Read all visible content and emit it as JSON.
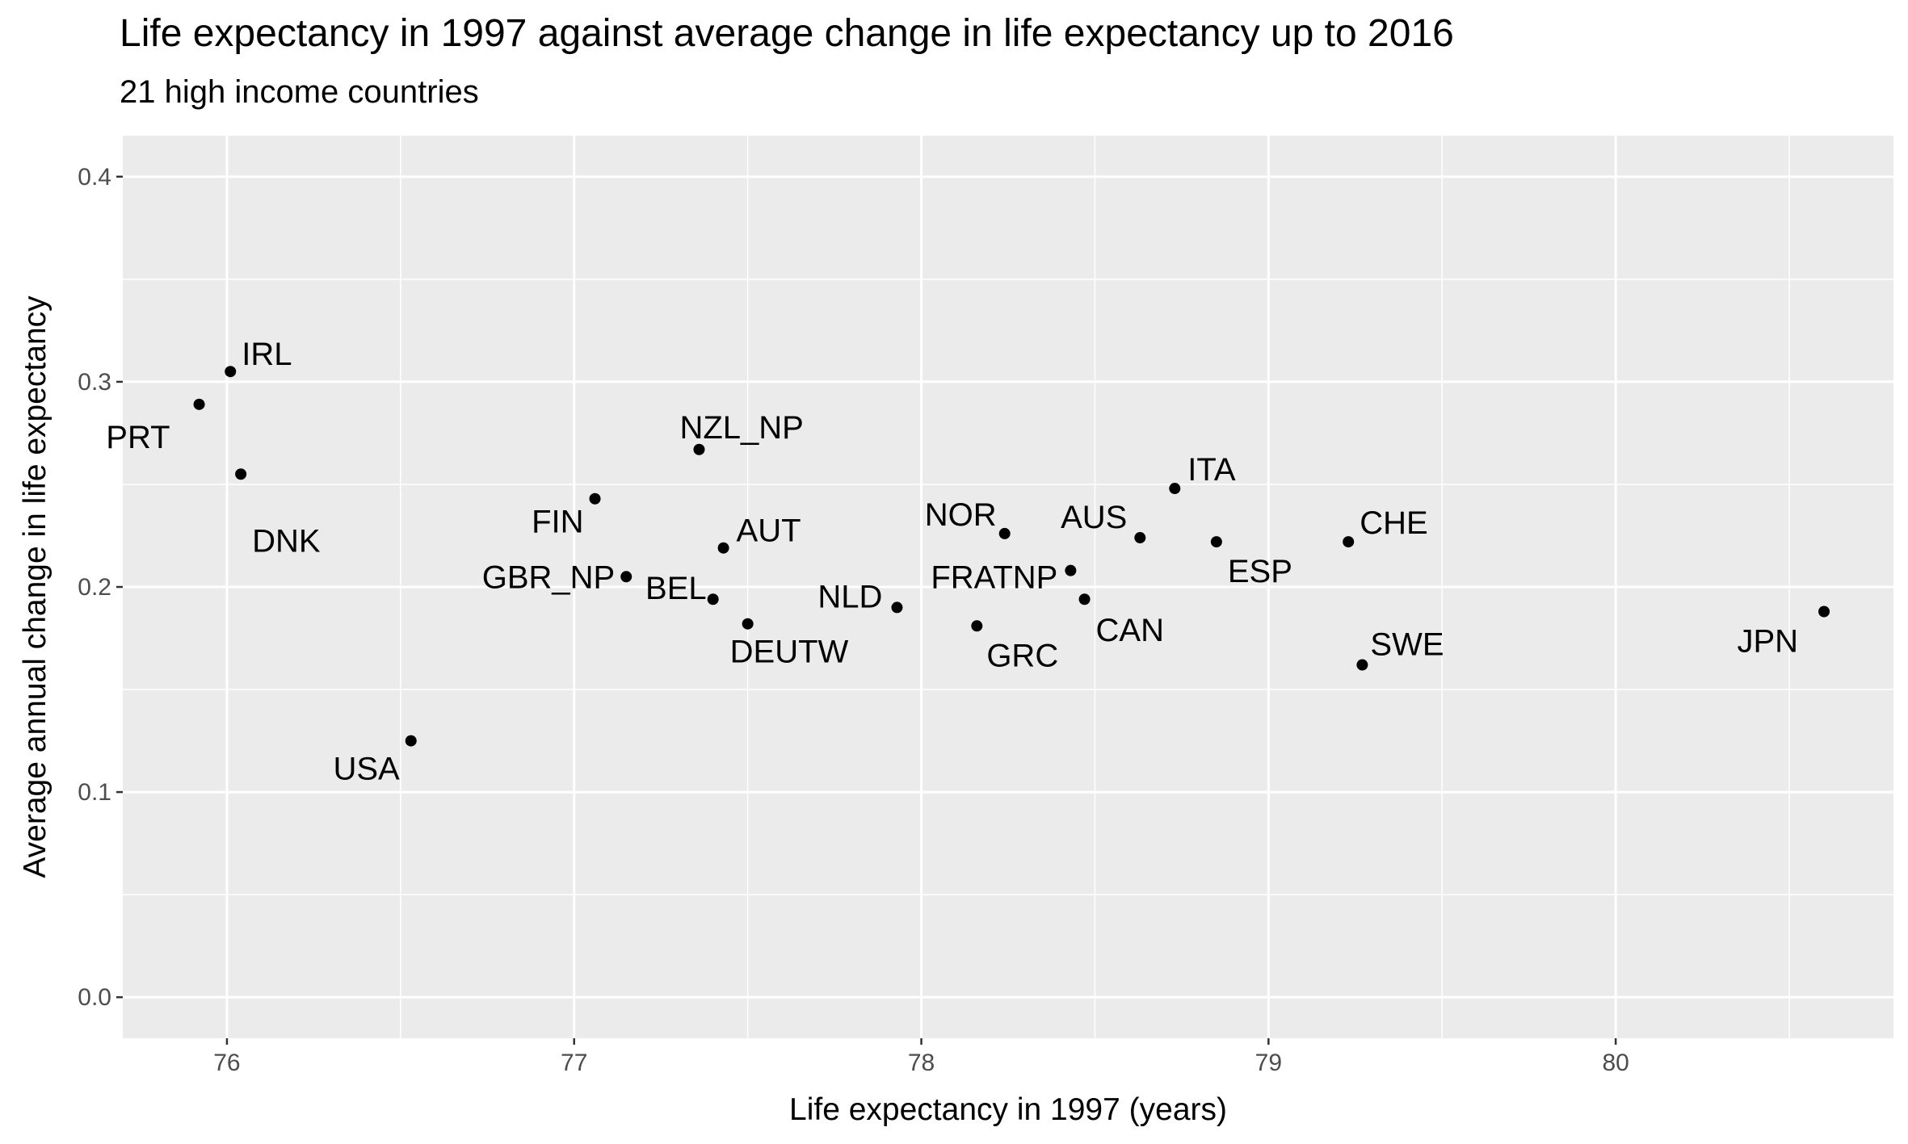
{
  "chart_data": {
    "type": "scatter",
    "title": "Life expectancy in 1997 against average change in life expectancy up to 2016",
    "subtitle": "21 high income countries",
    "xlabel": "Life expectancy in 1997 (years)",
    "ylabel": "Average annual change in life expectancy",
    "xlim": [
      75.7,
      80.8
    ],
    "ylim": [
      -0.02,
      0.42
    ],
    "xticks": [
      "76",
      "77",
      "78",
      "79",
      "80"
    ],
    "yticks": [
      "0.0",
      "0.1",
      "0.2",
      "0.3",
      "0.4"
    ],
    "grid": true,
    "legend": "none",
    "point_color": "#000000",
    "panel_color": "#ebebeb",
    "points": [
      {
        "label": "PRT",
        "x": 75.92,
        "y": 0.289
      },
      {
        "label": "IRL",
        "x": 76.01,
        "y": 0.305
      },
      {
        "label": "DNK",
        "x": 76.04,
        "y": 0.255
      },
      {
        "label": "USA",
        "x": 76.53,
        "y": 0.125
      },
      {
        "label": "FIN",
        "x": 77.06,
        "y": 0.243
      },
      {
        "label": "GBR_NP",
        "x": 77.15,
        "y": 0.205
      },
      {
        "label": "NZL_NP",
        "x": 77.36,
        "y": 0.267
      },
      {
        "label": "BEL",
        "x": 77.4,
        "y": 0.194
      },
      {
        "label": "AUT",
        "x": 77.43,
        "y": 0.219
      },
      {
        "label": "DEUTW",
        "x": 77.5,
        "y": 0.182
      },
      {
        "label": "NLD",
        "x": 77.93,
        "y": 0.19
      },
      {
        "label": "GRC",
        "x": 78.16,
        "y": 0.181
      },
      {
        "label": "NOR",
        "x": 78.24,
        "y": 0.226
      },
      {
        "label": "FRATNP",
        "x": 78.43,
        "y": 0.208
      },
      {
        "label": "CAN",
        "x": 78.47,
        "y": 0.194
      },
      {
        "label": "AUS",
        "x": 78.63,
        "y": 0.224
      },
      {
        "label": "ITA",
        "x": 78.73,
        "y": 0.248
      },
      {
        "label": "ESP",
        "x": 78.85,
        "y": 0.222
      },
      {
        "label": "CHE",
        "x": 79.23,
        "y": 0.222
      },
      {
        "label": "SWE",
        "x": 79.27,
        "y": 0.162
      },
      {
        "label": "JPN",
        "x": 80.6,
        "y": 0.188
      }
    ]
  }
}
